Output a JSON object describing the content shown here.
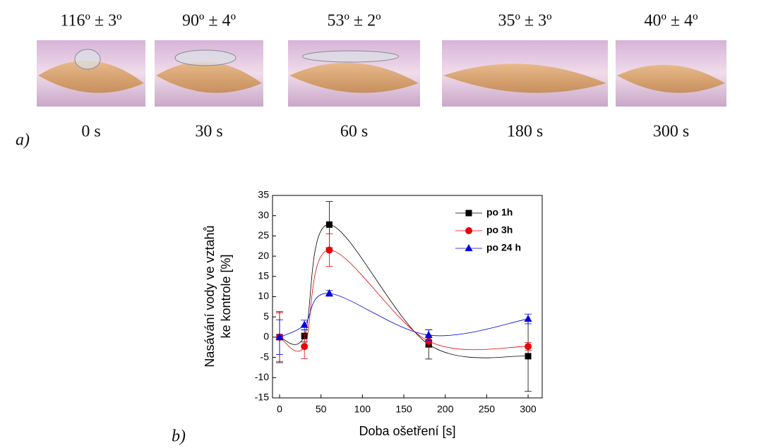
{
  "panel_a": {
    "label": "a)",
    "photos": [
      {
        "angle": "116º ± 3º",
        "time": "0 s"
      },
      {
        "angle": "90º ± 4º",
        "time": "30 s"
      },
      {
        "angle": "53º ± 2º",
        "time": "60 s"
      },
      {
        "angle": "35º ± 3º",
        "time": "180 s"
      },
      {
        "angle": "40º ± 4º",
        "time": "300 s"
      }
    ]
  },
  "panel_b_label": "b)",
  "chart_data": {
    "type": "line",
    "xlabel": "Doba ošetření [s]",
    "ylabel": [
      "Nasávání vody ve vztahů",
      "ke kontrole [%]"
    ],
    "x": [
      0,
      30,
      60,
      180,
      300
    ],
    "xlim": [
      -8.5,
      317
    ],
    "xticks": [
      0,
      50,
      100,
      150,
      200,
      250,
      300
    ],
    "ylim": [
      -15,
      35
    ],
    "yticks": [
      -15,
      -10,
      -5,
      0,
      5,
      10,
      15,
      20,
      25,
      30,
      35
    ],
    "smooth": true,
    "legend": "upper right",
    "series": [
      {
        "name": "po 1h",
        "color": "#000000",
        "marker": "square",
        "values": [
          0,
          0.3,
          27.8,
          -1.8,
          -4.7
        ],
        "errors": [
          6.3,
          1.5,
          5.7,
          3.6,
          8.7
        ]
      },
      {
        "name": "po 3h",
        "color": "#e8000b",
        "marker": "circle",
        "values": [
          0,
          -2.3,
          21.5,
          -1.0,
          -2.3
        ],
        "errors": [
          6.0,
          3.0,
          4.0,
          1.5,
          1.0
        ]
      },
      {
        "name": "po 24 h",
        "color": "#0000e0",
        "marker": "triangle",
        "values": [
          0,
          3.0,
          10.8,
          0.5,
          4.5
        ],
        "errors": [
          4.3,
          1.2,
          0.7,
          1.3,
          1.2
        ]
      }
    ]
  }
}
